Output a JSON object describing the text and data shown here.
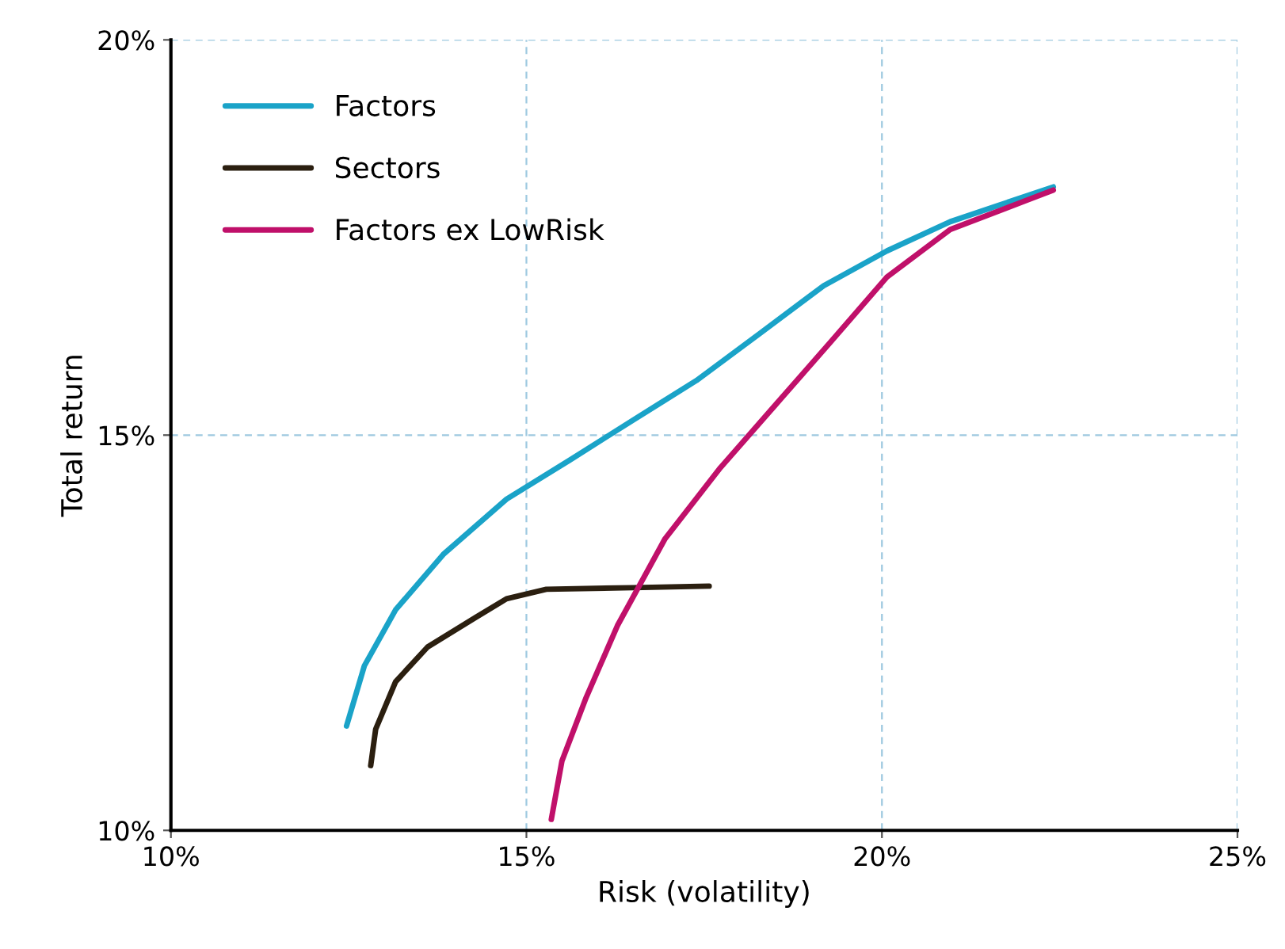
{
  "chart_data": {
    "type": "line",
    "xlabel": "Risk (volatility)",
    "ylabel": "Total return",
    "xlim": [
      10,
      25
    ],
    "ylim": [
      10,
      20
    ],
    "xticks": [
      {
        "value": 10,
        "label": "10%"
      },
      {
        "value": 15,
        "label": "15%"
      },
      {
        "value": 20,
        "label": "20%"
      },
      {
        "value": 25,
        "label": "25%"
      }
    ],
    "yticks": [
      {
        "value": 10,
        "label": "10%"
      },
      {
        "value": 15,
        "label": "15%"
      },
      {
        "value": 20,
        "label": "20%"
      }
    ],
    "grid": true,
    "legend": "top left",
    "marker": "none",
    "line_style": "solid",
    "series": [
      {
        "name": "Factors",
        "color": "#1aa3c8",
        "x": [
          12.47,
          12.72,
          13.16,
          13.83,
          14.72,
          15.62,
          16.5,
          17.39,
          18.29,
          19.18,
          20.07,
          20.96,
          22.41
        ],
        "values": [
          11.32,
          12.08,
          12.79,
          13.49,
          14.19,
          14.69,
          15.19,
          15.69,
          16.29,
          16.89,
          17.33,
          17.7,
          18.14
        ]
      },
      {
        "name": "Sectors",
        "color": "#2b1f10",
        "x": [
          12.81,
          12.88,
          13.16,
          13.61,
          14.28,
          14.72,
          15.28,
          16.5,
          17.57
        ],
        "values": [
          10.82,
          11.28,
          11.88,
          12.32,
          12.69,
          12.93,
          13.05,
          13.07,
          13.09
        ]
      },
      {
        "name": "Factors ex LowRisk",
        "color": "#c0106a",
        "x": [
          15.35,
          15.5,
          15.84,
          16.28,
          16.95,
          17.73,
          18.51,
          19.29,
          20.07,
          20.96,
          22.41
        ],
        "values": [
          10.14,
          10.88,
          11.68,
          12.59,
          13.69,
          14.59,
          15.39,
          16.19,
          17.0,
          17.6,
          18.1
        ]
      }
    ]
  }
}
